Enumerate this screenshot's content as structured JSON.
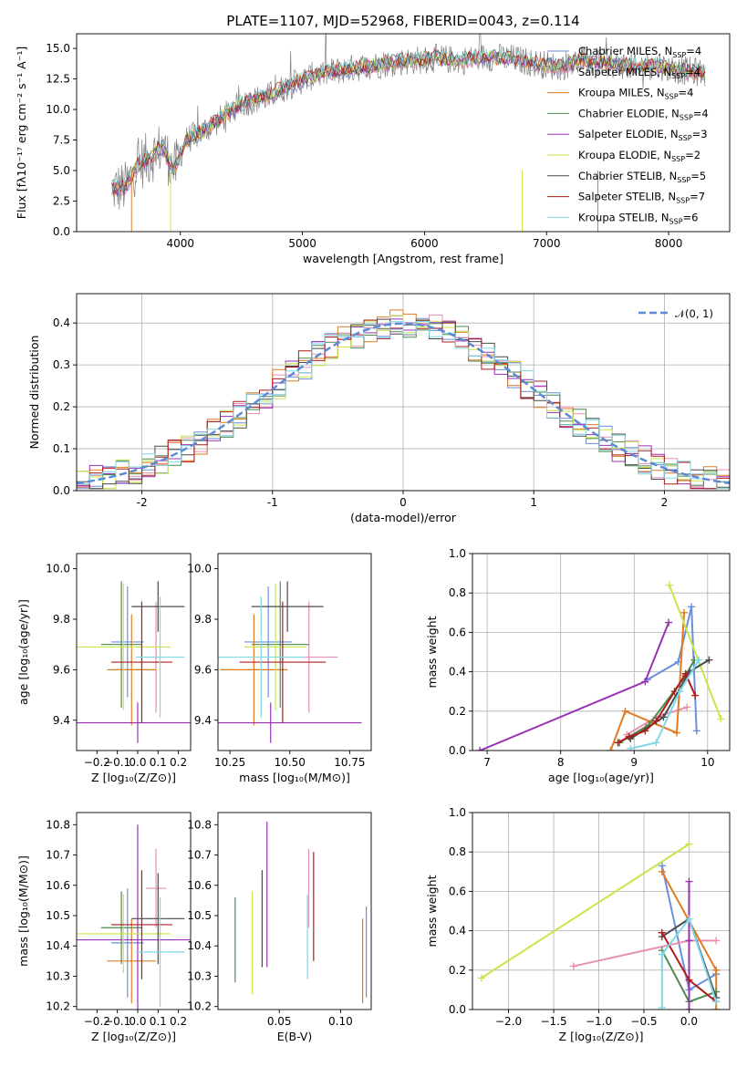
{
  "chart_data": [
    {
      "id": "spectrum",
      "type": "line",
      "title": "PLATE=1107, MJD=52968, FIBERID=0043, z=0.114",
      "xlabel": "wavelength [Angstrom, rest frame]",
      "ylabel": "Flux [fλ10⁻¹⁷ erg cm⁻² s⁻¹ A⁻¹]",
      "xlim": [
        3150,
        8500
      ],
      "ylim": [
        0,
        16.2
      ],
      "xticks": [
        4000,
        5000,
        6000,
        7000,
        8000
      ],
      "yticks": [
        0.0,
        2.5,
        5.0,
        7.5,
        10.0,
        12.5,
        15.0
      ],
      "grid": false,
      "legend_position": "top-right",
      "data": {
        "name": "data",
        "color": "#808080",
        "x": [
          3450,
          3550,
          3650,
          3750,
          3850,
          3950,
          4050,
          4150,
          4300,
          4500,
          4700,
          4900,
          5100,
          5300,
          5500,
          5700,
          5900,
          6100,
          6300,
          6500,
          6700,
          6900,
          7100,
          7300,
          7500,
          7700,
          7900,
          8100,
          8300
        ],
        "y": [
          3.5,
          3.6,
          5.5,
          6.0,
          7.0,
          5.0,
          7.5,
          8.0,
          9.0,
          10.5,
          11.0,
          12.0,
          12.8,
          13.2,
          13.5,
          13.8,
          14.0,
          14.2,
          14.0,
          14.3,
          14.2,
          13.8,
          13.5,
          14.0,
          13.8,
          13.5,
          13.6,
          13.2,
          13.0
        ]
      },
      "models": [
        {
          "name": "Chabrier MILES, Nₛₛₚ=4",
          "label_main": "Chabrier MILES, N",
          "nssp": "4",
          "color": "#6a8fdc"
        },
        {
          "name": "Salpeter MILES, Nₛₛₚ=4",
          "label_main": "Salpeter MILES, N",
          "nssp": "4",
          "color": "#e88fb4"
        },
        {
          "name": "Kroupa MILES, Nₛₛₚ=4",
          "label_main": "Kroupa MILES, N",
          "nssp": "4",
          "color": "#e07b22"
        },
        {
          "name": "Chabrier ELODIE, Nₛₛₚ=4",
          "label_main": "Chabrier ELODIE, N",
          "nssp": "4",
          "color": "#4f8a4f"
        },
        {
          "name": "Salpeter ELODIE, Nₛₛₚ=3",
          "label_main": "Salpeter ELODIE, N",
          "nssp": "3",
          "color": "#9b30b5"
        },
        {
          "name": "Kroupa ELODIE, Nₛₛₚ=2",
          "label_main": "Kroupa ELODIE, N",
          "nssp": "2",
          "color": "#c8e64c"
        },
        {
          "name": "Chabrier STELIB, Nₛₛₚ=5",
          "label_main": "Chabrier STELIB, N",
          "nssp": "5",
          "color": "#4a4a4a"
        },
        {
          "name": "Salpeter STELIB, Nₛₛₚ=7",
          "label_main": "Salpeter STELIB, N",
          "nssp": "7",
          "color": "#b01c1c"
        },
        {
          "name": "Kroupa STELIB, Nₛₛₚ=6",
          "label_main": "Kroupa STELIB, N",
          "nssp": "6",
          "color": "#7fd8e6"
        }
      ]
    },
    {
      "id": "residuals",
      "type": "line",
      "xlabel": "(data-model)/error",
      "ylabel": "Normed distribution",
      "xlim": [
        -2.5,
        2.5
      ],
      "ylim": [
        0,
        0.47
      ],
      "xticks": [
        -2,
        -1,
        0,
        1,
        2
      ],
      "yticks": [
        0.0,
        0.1,
        0.2,
        0.3,
        0.4
      ],
      "grid": true,
      "legend_position": "top-right",
      "gaussian_label": "𝒩(0, 1)",
      "gaussian_color": "#5b8bd6",
      "hist_step": 0.1
    },
    {
      "id": "age_vs_Z",
      "type": "scatter",
      "xlabel": "Z [log₁₀(Z/Z⊙)]",
      "ylabel": "age  [log₁₀(age/yr)]",
      "xlim": [
        -0.3,
        0.26
      ],
      "ylim": [
        9.28,
        10.06
      ],
      "xticks": [
        -0.2,
        -0.1,
        0.0,
        0.1,
        0.2
      ],
      "xticklabels": [
        "−0.2",
        "−0.1",
        "0.0",
        "0.1",
        "0.2"
      ],
      "yticks": [
        9.4,
        9.6,
        9.8,
        10.0
      ],
      "grid": false,
      "points": [
        {
          "color": "#6a8fdc",
          "x": -0.05,
          "xerr": 0.08,
          "y": 9.71,
          "yerr": 0.22
        },
        {
          "color": "#e88fb4",
          "x": 0.09,
          "xerr": 0.05,
          "y": 9.65,
          "yerr": 0.22
        },
        {
          "color": "#e07b22",
          "x": -0.03,
          "xerr": 0.12,
          "y": 9.6,
          "yerr": 0.22
        },
        {
          "color": "#4f8a4f",
          "x": -0.08,
          "xerr": 0.1,
          "y": 9.7,
          "yerr": 0.25
        },
        {
          "color": "#9b30b5",
          "x": 0.0,
          "xerr": 0.3,
          "y": 9.39,
          "yerr": 0.08
        },
        {
          "color": "#c8e64c",
          "x": -0.07,
          "xerr": 0.23,
          "y": 9.69,
          "yerr": 0.25
        },
        {
          "color": "#4a4a4a",
          "x": 0.1,
          "xerr": 0.13,
          "y": 9.85,
          "yerr": 0.1
        },
        {
          "color": "#b01c1c",
          "x": 0.02,
          "xerr": 0.15,
          "y": 9.63,
          "yerr": 0.24
        },
        {
          "color": "#7fd8e6",
          "x": 0.11,
          "xerr": 0.12,
          "y": 9.65,
          "yerr": 0.24
        }
      ]
    },
    {
      "id": "age_vs_mass",
      "type": "scatter",
      "xlabel": "mass [log₁₀(M/M⊙)]",
      "xlim": [
        10.2,
        10.84
      ],
      "ylim": [
        9.28,
        10.06
      ],
      "xticks": [
        10.25,
        10.5,
        10.75
      ],
      "xticklabels": [
        "10.25",
        "10.50",
        "10.75"
      ],
      "yticks": [
        9.4,
        9.6,
        9.8,
        10.0
      ],
      "grid": false,
      "points": [
        {
          "color": "#6a8fdc",
          "x": 10.41,
          "xerr": 0.1,
          "y": 9.71,
          "yerr": 0.22
        },
        {
          "color": "#e88fb4",
          "x": 10.58,
          "xerr": 0.12,
          "y": 9.65,
          "yerr": 0.22
        },
        {
          "color": "#e07b22",
          "x": 10.35,
          "xerr": 0.14,
          "y": 9.6,
          "yerr": 0.22
        },
        {
          "color": "#4f8a4f",
          "x": 10.46,
          "xerr": 0.12,
          "y": 9.7,
          "yerr": 0.25
        },
        {
          "color": "#9b30b5",
          "x": 10.42,
          "xerr": 0.38,
          "y": 9.39,
          "yerr": 0.08
        },
        {
          "color": "#c8e64c",
          "x": 10.44,
          "xerr": 0.13,
          "y": 9.69,
          "yerr": 0.25
        },
        {
          "color": "#4a4a4a",
          "x": 10.49,
          "xerr": 0.15,
          "y": 9.85,
          "yerr": 0.1
        },
        {
          "color": "#b01c1c",
          "x": 10.47,
          "xerr": 0.18,
          "y": 9.63,
          "yerr": 0.24
        },
        {
          "color": "#7fd8e6",
          "x": 10.38,
          "xerr": 0.18,
          "y": 9.65,
          "yerr": 0.24
        }
      ]
    },
    {
      "id": "massweight_vs_age",
      "type": "line",
      "xlabel": "age  [log₁₀(age/yr)]",
      "ylabel": "mass weight",
      "xlim": [
        6.8,
        10.3
      ],
      "ylim": [
        0,
        1.0
      ],
      "xticks": [
        7,
        8,
        9,
        10
      ],
      "yticks": [
        0.0,
        0.2,
        0.4,
        0.6,
        0.8,
        1.0
      ],
      "grid": true,
      "series": [
        {
          "color": "#6a8fdc",
          "x": [
            9.18,
            9.6,
            9.78,
            9.85
          ],
          "y": [
            0.36,
            0.45,
            0.73,
            0.1
          ]
        },
        {
          "color": "#e88fb4",
          "x": [
            8.9,
            9.3,
            9.72
          ],
          "y": [
            0.08,
            0.17,
            0.22
          ]
        },
        {
          "color": "#e07b22",
          "x": [
            8.68,
            8.88,
            9.58,
            9.68
          ],
          "y": [
            0.0,
            0.2,
            0.09,
            0.7
          ]
        },
        {
          "color": "#4f8a4f",
          "x": [
            8.8,
            9.2,
            9.7,
            9.82
          ],
          "y": [
            0.04,
            0.13,
            0.38,
            0.46
          ]
        },
        {
          "color": "#9b30b5",
          "x": [
            6.9,
            9.15,
            9.47
          ],
          "y": [
            0.0,
            0.35,
            0.65
          ]
        },
        {
          "color": "#c8e64c",
          "x": [
            9.48,
            10.18
          ],
          "y": [
            0.84,
            0.16
          ]
        },
        {
          "color": "#4a4a4a",
          "x": [
            8.95,
            9.4,
            9.75,
            10.02
          ],
          "y": [
            0.06,
            0.17,
            0.4,
            0.46
          ]
        },
        {
          "color": "#b01c1c",
          "x": [
            8.78,
            8.93,
            9.15,
            9.3,
            9.55,
            9.7,
            9.83
          ],
          "y": [
            0.04,
            0.07,
            0.1,
            0.15,
            0.3,
            0.39,
            0.28
          ]
        },
        {
          "color": "#7fd8e6",
          "x": [
            8.95,
            9.3,
            9.62,
            9.88
          ],
          "y": [
            0.01,
            0.04,
            0.3,
            0.46
          ]
        }
      ]
    },
    {
      "id": "mass_vs_Z",
      "type": "scatter",
      "xlabel": "Z [log₁₀(Z/Z⊙)]",
      "ylabel": "mass [log₁₀(M/M⊙)]",
      "xlim": [
        -0.3,
        0.26
      ],
      "ylim": [
        10.19,
        10.84
      ],
      "xticks": [
        -0.2,
        -0.1,
        0.0,
        0.1,
        0.2
      ],
      "xticklabels": [
        "−0.2",
        "−0.1",
        "0.0",
        "0.1",
        "0.2"
      ],
      "yticks": [
        10.2,
        10.3,
        10.4,
        10.5,
        10.6,
        10.7,
        10.8
      ],
      "grid": false,
      "points": [
        {
          "color": "#6a8fdc",
          "x": -0.05,
          "xerr": 0.08,
          "y": 10.41,
          "yerr": 0.18
        },
        {
          "color": "#e88fb4",
          "x": 0.09,
          "xerr": 0.05,
          "y": 10.59,
          "yerr": 0.13
        },
        {
          "color": "#e07b22",
          "x": -0.03,
          "xerr": 0.12,
          "y": 10.35,
          "yerr": 0.14
        },
        {
          "color": "#4f8a4f",
          "x": -0.08,
          "xerr": 0.1,
          "y": 10.46,
          "yerr": 0.12
        },
        {
          "color": "#9b30b5",
          "x": 0.0,
          "xerr": 0.3,
          "y": 10.42,
          "yerr": 0.38
        },
        {
          "color": "#c8e64c",
          "x": -0.07,
          "xerr": 0.23,
          "y": 10.44,
          "yerr": 0.13
        },
        {
          "color": "#4a4a4a",
          "x": 0.1,
          "xerr": 0.13,
          "y": 10.49,
          "yerr": 0.15
        },
        {
          "color": "#b01c1c",
          "x": 0.02,
          "xerr": 0.15,
          "y": 10.47,
          "yerr": 0.18
        },
        {
          "color": "#7fd8e6",
          "x": 0.11,
          "xerr": 0.12,
          "y": 10.38,
          "yerr": 0.18
        }
      ]
    },
    {
      "id": "mass_vs_EBV",
      "type": "scatter",
      "xlabel": "E(B-V)",
      "xlim": [
        0.0,
        0.125
      ],
      "ylim": [
        10.19,
        10.84
      ],
      "xticks": [
        0.05,
        0.1
      ],
      "xticklabels": [
        "0.05",
        "0.10"
      ],
      "yticks": [
        10.2,
        10.3,
        10.4,
        10.5,
        10.6,
        10.7,
        10.8
      ],
      "grid": false,
      "points": [
        {
          "color": "#6a8fdc",
          "x": 0.121,
          "y": 10.38,
          "yerr": 0.15
        },
        {
          "color": "#e88fb4",
          "x": 0.074,
          "y": 10.59,
          "yerr": 0.13
        },
        {
          "color": "#e07b22",
          "x": 0.118,
          "y": 10.35,
          "yerr": 0.14
        },
        {
          "color": "#4f8a4f",
          "x": 0.014,
          "y": 10.42,
          "yerr": 0.14
        },
        {
          "color": "#9b30b5",
          "x": 0.04,
          "y": 10.57,
          "yerr": 0.24
        },
        {
          "color": "#c8e64c",
          "x": 0.028,
          "y": 10.41,
          "yerr": 0.17
        },
        {
          "color": "#4a4a4a",
          "x": 0.036,
          "y": 10.49,
          "yerr": 0.16
        },
        {
          "color": "#b01c1c",
          "x": 0.078,
          "y": 10.53,
          "yerr": 0.18
        },
        {
          "color": "#7fd8e6",
          "x": 0.073,
          "y": 10.43,
          "yerr": 0.14
        }
      ]
    },
    {
      "id": "massweight_vs_Z",
      "type": "line",
      "xlabel": "Z [log₁₀(Z/Z⊙)]",
      "ylabel": "mass weight",
      "xlim": [
        -2.4,
        0.45
      ],
      "ylim": [
        0,
        1.0
      ],
      "xticks": [
        -2.0,
        -1.5,
        -1.0,
        -0.5,
        0.0
      ],
      "xticklabels": [
        "−2.0",
        "−1.5",
        "−1.0",
        "−0.5",
        "0.0"
      ],
      "yticks": [
        0.0,
        0.2,
        0.4,
        0.6,
        0.8,
        1.0
      ],
      "grid": true,
      "series": [
        {
          "color": "#6a8fdc",
          "x": [
            -0.3,
            0.0,
            0.3
          ],
          "y": [
            0.73,
            0.1,
            0.18
          ]
        },
        {
          "color": "#e88fb4",
          "x": [
            -1.28,
            0.0,
            0.3
          ],
          "y": [
            0.22,
            0.35,
            0.35
          ]
        },
        {
          "color": "#e07b22",
          "x": [
            -0.3,
            0.3,
            0.3
          ],
          "y": [
            0.7,
            0.2,
            0.0
          ]
        },
        {
          "color": "#4f8a4f",
          "x": [
            -0.3,
            0.0,
            0.3
          ],
          "y": [
            0.3,
            0.04,
            0.09
          ]
        },
        {
          "color": "#9b30b5",
          "x": [
            0.0,
            0.0,
            0.0
          ],
          "y": [
            0.65,
            0.35,
            0.0
          ]
        },
        {
          "color": "#c8e64c",
          "x": [
            -2.3,
            0.0
          ],
          "y": [
            0.16,
            0.84
          ]
        },
        {
          "color": "#4a4a4a",
          "x": [
            -0.3,
            0.0,
            0.3
          ],
          "y": [
            0.37,
            0.46,
            0.06
          ]
        },
        {
          "color": "#b01c1c",
          "x": [
            -0.3,
            0.0,
            0.3
          ],
          "y": [
            0.39,
            0.15,
            0.04
          ]
        },
        {
          "color": "#7fd8e6",
          "x": [
            -0.3,
            -0.3,
            0.0,
            0.3
          ],
          "y": [
            0.01,
            0.28,
            0.46,
            0.04
          ]
        }
      ]
    }
  ]
}
